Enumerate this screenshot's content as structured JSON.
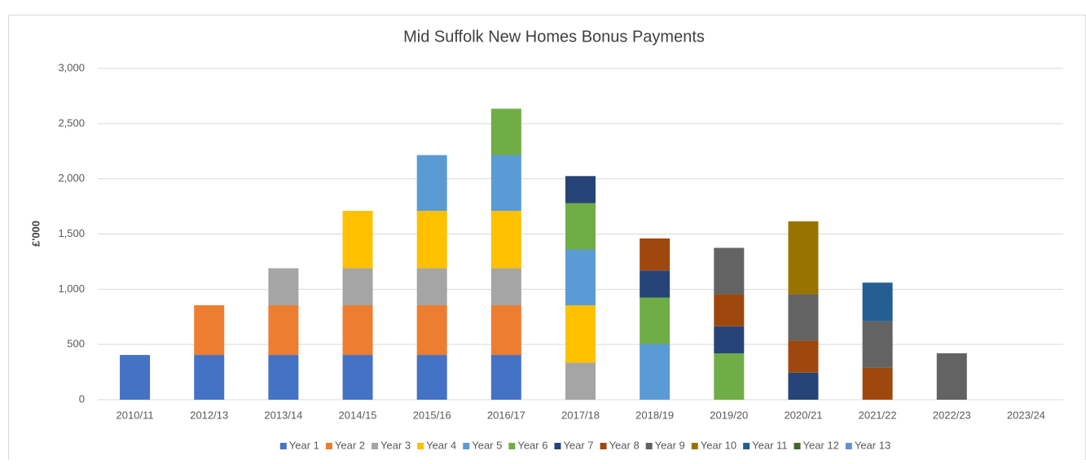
{
  "chart_data": {
    "type": "stacked_bar",
    "title": "Mid Suffolk New Homes Bonus Payments",
    "y_label": "£'000",
    "categories": [
      "2010/11",
      "2012/13",
      "2013/14",
      "2014/15",
      "2015/16",
      "2016/17",
      "2017/18",
      "2018/19",
      "2019/20",
      "2020/21",
      "2021/22",
      "2022/23",
      "2023/24"
    ],
    "series": [
      {
        "name": "Year 1",
        "color": "#4472c4",
        "values": [
          405,
          405,
          405,
          405,
          405,
          405,
          null,
          null,
          null,
          null,
          null,
          null,
          null
        ]
      },
      {
        "name": "Year 2",
        "color": "#ed7d31",
        "values": [
          null,
          450,
          450,
          450,
          450,
          450,
          null,
          null,
          null,
          null,
          null,
          null,
          null
        ]
      },
      {
        "name": "Year 3",
        "color": "#a5a5a5",
        "values": [
          null,
          null,
          335,
          335,
          335,
          335,
          335,
          null,
          null,
          null,
          null,
          null,
          null
        ]
      },
      {
        "name": "Year 4",
        "color": "#ffc000",
        "values": [
          null,
          null,
          null,
          520,
          520,
          520,
          520,
          null,
          null,
          null,
          null,
          null,
          null
        ]
      },
      {
        "name": "Year 5",
        "color": "#5b9bd5",
        "values": [
          null,
          null,
          null,
          null,
          505,
          505,
          505,
          505,
          null,
          null,
          null,
          null,
          null
        ]
      },
      {
        "name": "Year 6",
        "color": "#70ad47",
        "values": [
          null,
          null,
          null,
          null,
          null,
          420,
          420,
          420,
          420,
          null,
          null,
          null,
          null
        ]
      },
      {
        "name": "Year 7",
        "color": "#264478",
        "values": [
          null,
          null,
          null,
          null,
          null,
          null,
          245,
          245,
          245,
          245,
          null,
          null,
          null
        ]
      },
      {
        "name": "Year 8",
        "color": "#9e480e",
        "values": [
          null,
          null,
          null,
          null,
          null,
          null,
          null,
          290,
          290,
          290,
          290,
          null,
          null
        ]
      },
      {
        "name": "Year 9",
        "color": "#636363",
        "values": [
          null,
          null,
          null,
          null,
          null,
          null,
          null,
          null,
          420,
          420,
          420,
          420,
          null
        ]
      },
      {
        "name": "Year 10",
        "color": "#997300",
        "values": [
          null,
          null,
          null,
          null,
          null,
          null,
          null,
          null,
          null,
          660,
          null,
          null,
          null
        ]
      },
      {
        "name": "Year 11",
        "color": "#255e91",
        "values": [
          null,
          null,
          null,
          null,
          null,
          null,
          null,
          null,
          null,
          null,
          350,
          null,
          null
        ]
      },
      {
        "name": "Year 12",
        "color": "#43682b",
        "values": [
          null,
          null,
          null,
          null,
          null,
          null,
          null,
          null,
          null,
          null,
          null,
          null,
          null
        ]
      },
      {
        "name": "Year 13",
        "color": "#698ed0",
        "values": [
          null,
          null,
          null,
          null,
          null,
          null,
          null,
          null,
          null,
          null,
          null,
          null,
          null
        ]
      }
    ],
    "ylim": [
      0,
      3000
    ],
    "yticks": [
      0,
      500,
      {
        "value": 1000,
        "label": "1,000"
      },
      {
        "value": 1500,
        "label": "1,500"
      },
      {
        "value": 2000,
        "label": "2,000"
      },
      {
        "value": 2500,
        "label": "2,500"
      },
      {
        "value": 3000,
        "label": "3,000"
      }
    ],
    "grid": true,
    "legend": "bottom"
  }
}
